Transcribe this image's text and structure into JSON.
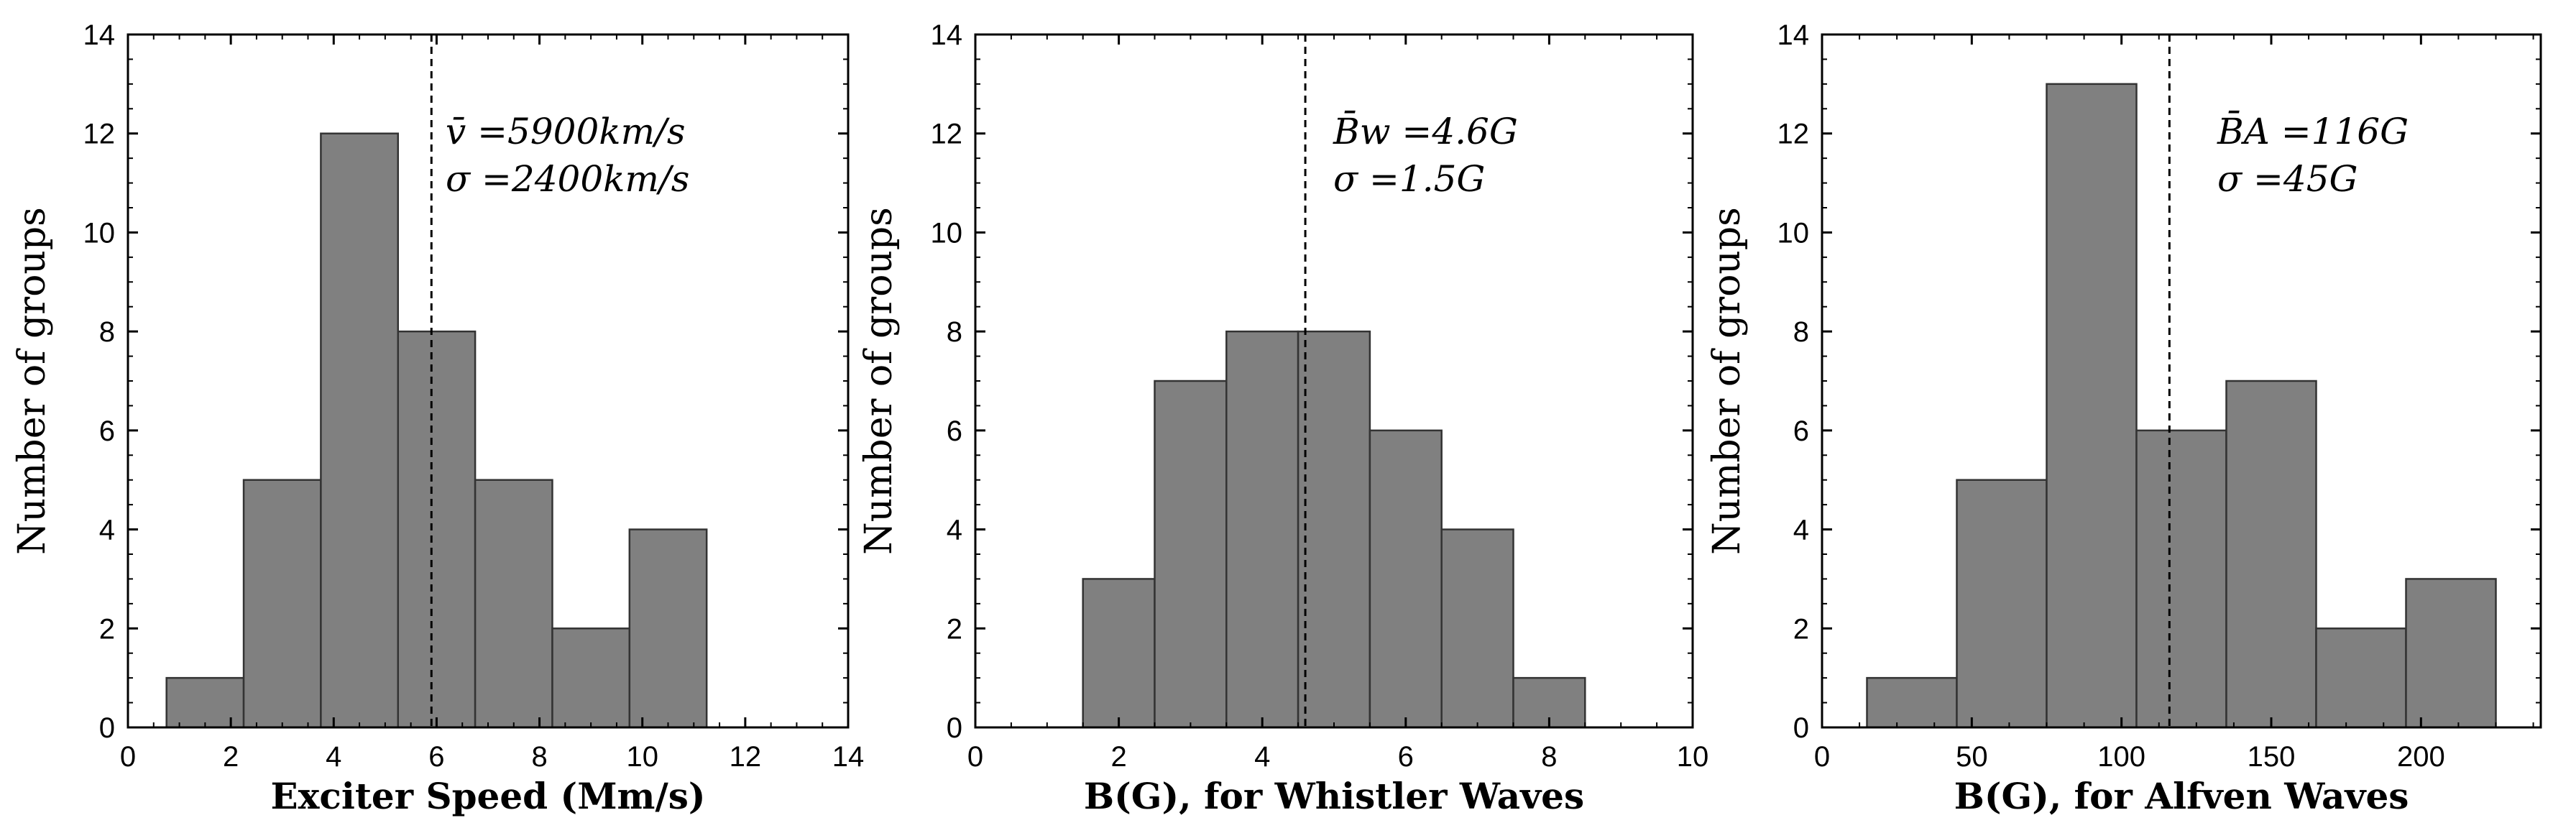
{
  "chart_data": [
    {
      "type": "bar",
      "histogram": true,
      "xlabel": "Exciter Speed (Mm/s)",
      "ylabel": "Number of groups",
      "xlim": [
        0,
        14
      ],
      "ylim": [
        0,
        14
      ],
      "xticks": [
        "0",
        "2",
        "4",
        "6",
        "8",
        "10",
        "12",
        "14"
      ],
      "yticks": [
        "0",
        "2",
        "4",
        "6",
        "8",
        "10",
        "12",
        "14"
      ],
      "bins": [
        [
          0.75,
          2.25
        ],
        [
          2.25,
          3.75
        ],
        [
          3.75,
          5.25
        ],
        [
          5.25,
          6.75
        ],
        [
          6.75,
          8.25
        ],
        [
          8.25,
          9.75
        ],
        [
          9.75,
          11.25
        ]
      ],
      "values": [
        1,
        5,
        12,
        8,
        5,
        2,
        4
      ],
      "mean_line": 5.9,
      "annotations": [
        "v̄ =5900km/s",
        "σ =2400km/s"
      ]
    },
    {
      "type": "bar",
      "histogram": true,
      "xlabel": "B(G), for Whistler Waves",
      "ylabel": "Number of groups",
      "xlim": [
        0,
        10
      ],
      "ylim": [
        0,
        14
      ],
      "xticks": [
        "0",
        "2",
        "4",
        "6",
        "8",
        "10"
      ],
      "yticks": [
        "0",
        "2",
        "4",
        "6",
        "8",
        "10",
        "12",
        "14"
      ],
      "bins": [
        [
          1.5,
          2.5
        ],
        [
          2.5,
          3.5
        ],
        [
          3.5,
          4.5
        ],
        [
          4.5,
          5.5
        ],
        [
          5.5,
          6.5
        ],
        [
          6.5,
          7.5
        ],
        [
          7.5,
          8.5
        ]
      ],
      "values": [
        3,
        7,
        8,
        8,
        6,
        4,
        1
      ],
      "mean_line": 4.6,
      "annotations": [
        "B̄w =4.6G",
        "σ =1.5G"
      ]
    },
    {
      "type": "bar",
      "histogram": true,
      "xlabel": "B(G), for Alfven Waves",
      "ylabel": "Number of groups",
      "xlim": [
        0,
        240
      ],
      "ylim": [
        0,
        14
      ],
      "xticks": [
        "0",
        "50",
        "100",
        "150",
        "200"
      ],
      "yticks": [
        "0",
        "2",
        "4",
        "6",
        "8",
        "10",
        "12",
        "14"
      ],
      "bins": [
        [
          15,
          45
        ],
        [
          45,
          75
        ],
        [
          75,
          105
        ],
        [
          105,
          135
        ],
        [
          135,
          165
        ],
        [
          165,
          195
        ],
        [
          195,
          225
        ]
      ],
      "values": [
        1,
        5,
        13,
        6,
        7,
        2,
        3
      ],
      "mean_line": 116,
      "annotations": [
        "B̄A =116G",
        "σ =45G"
      ]
    }
  ]
}
